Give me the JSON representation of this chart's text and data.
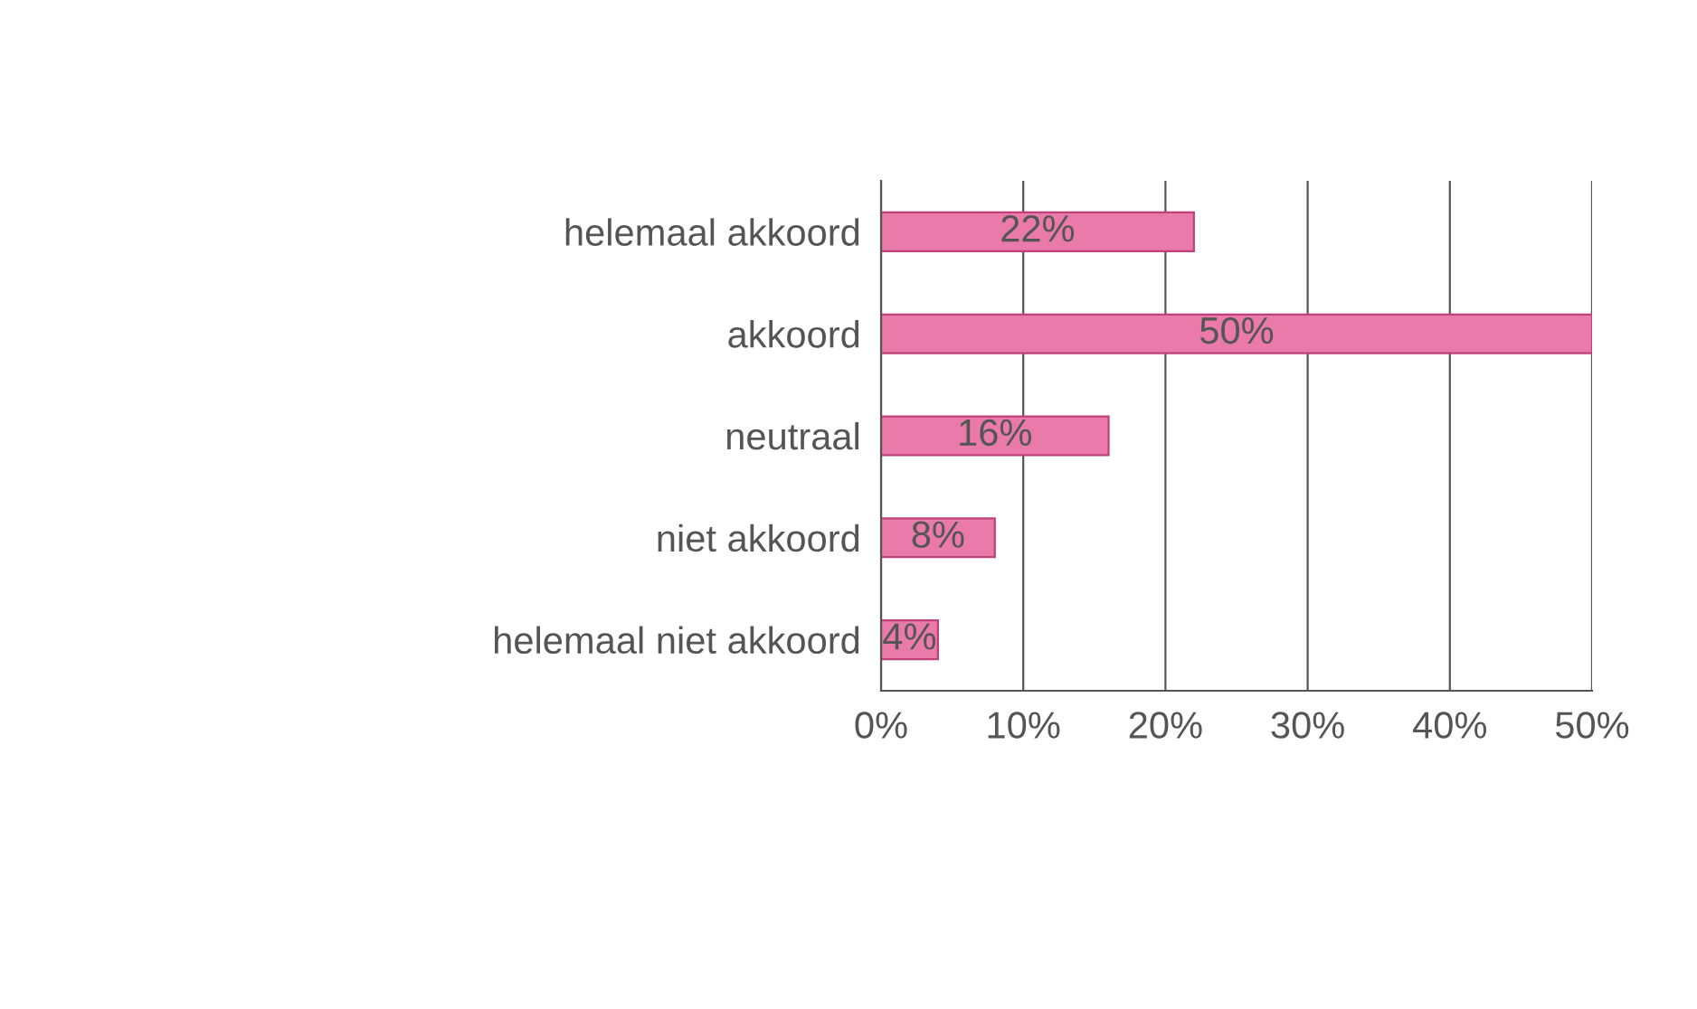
{
  "chart_data": {
    "type": "bar",
    "orientation": "horizontal",
    "categories": [
      "helemaal akkoord",
      "akkoord",
      "neutraal",
      "niet akkoord",
      "helemaal niet akkoord"
    ],
    "values": [
      22,
      50,
      16,
      8,
      4
    ],
    "color": "#e97aaa",
    "value_labels": [
      "22%",
      "50%",
      "16%",
      "8%",
      "4%"
    ],
    "xlim": [
      0,
      50
    ],
    "xticks": [
      {
        "value": 0,
        "label": "0%"
      },
      {
        "value": 10,
        "label": "10%"
      },
      {
        "value": 20,
        "label": "20%"
      },
      {
        "value": 30,
        "label": "30%"
      },
      {
        "value": 40,
        "label": "40%"
      },
      {
        "value": 50,
        "label": "50%"
      }
    ],
    "grid": "x",
    "legend": false
  }
}
